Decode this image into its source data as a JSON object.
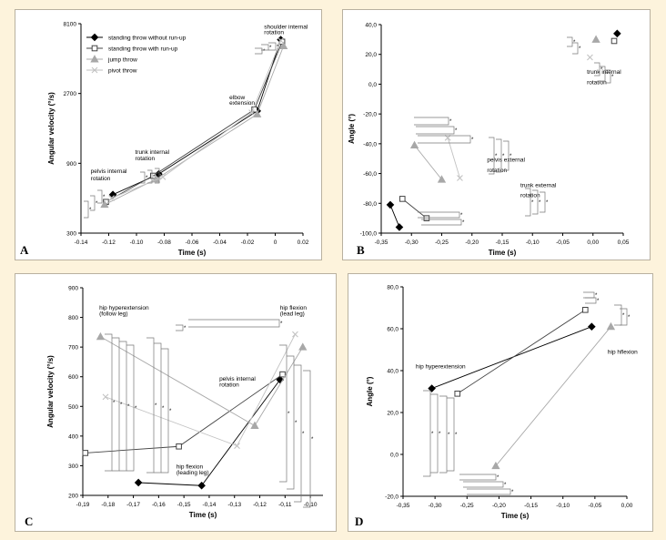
{
  "chart_data": [
    {
      "panel_letter": "A",
      "type": "line",
      "xlabel": "Time (s)",
      "ylabel": "Angular velocity (°/s)",
      "xlim": [
        -0.14,
        0.02
      ],
      "ylim": [
        300,
        8100
      ],
      "yscale": "log",
      "xticks": [
        -0.14,
        -0.12,
        -0.1,
        -0.08,
        -0.06,
        -0.04,
        -0.02,
        0,
        0.02
      ],
      "xtick_labels": [
        "-0.14",
        "-0.12",
        "-0.10",
        "-0.08",
        "-0.06",
        "-0.04",
        "-0.02",
        "0",
        "0.02"
      ],
      "yticks": [
        300,
        900,
        2700,
        8100
      ],
      "ytick_labels": [
        "300",
        "900",
        "2700",
        "8100"
      ],
      "legend_position": "top-left",
      "series": [
        {
          "name": "standing throw without run-up",
          "marker": "diamond-filled",
          "color": "#000000",
          "x": [
            -0.117,
            -0.084,
            -0.013,
            0.004
          ],
          "y": [
            550,
            760,
            2050,
            6300
          ]
        },
        {
          "name": "standing throw with run-up",
          "marker": "square-open",
          "color": "#444444",
          "x": [
            -0.122,
            -0.088,
            -0.015,
            0.005
          ],
          "y": [
            490,
            740,
            2100,
            6100
          ]
        },
        {
          "name": "jump throw",
          "marker": "triangle",
          "color": "#a8a8a8",
          "x": [
            -0.123,
            -0.086,
            -0.013,
            0.006
          ],
          "y": [
            470,
            700,
            1950,
            5700
          ]
        },
        {
          "name": "pivot throw",
          "marker": "cross",
          "color": "#c2c2c2",
          "x": [
            -0.118,
            -0.081,
            -0.017,
            0.004
          ],
          "y": [
            520,
            725,
            2000,
            6200
          ]
        }
      ],
      "annotations": [
        {
          "text": "pelvis internal",
          "x": -0.133,
          "y": 770
        },
        {
          "text": "rotation",
          "x": -0.133,
          "y": 690
        },
        {
          "text": "trunk internal",
          "x": -0.101,
          "y": 1040
        },
        {
          "text": "rotation",
          "x": -0.101,
          "y": 945
        },
        {
          "text": "elbow",
          "x": -0.033,
          "y": 2460
        },
        {
          "text": "extension",
          "x": -0.033,
          "y": 2260
        },
        {
          "text": "shoulder internal",
          "x": -0.008,
          "y": 7500
        },
        {
          "text": "rotation",
          "x": -0.008,
          "y": 6850
        }
      ]
    },
    {
      "panel_letter": "B",
      "type": "scatter",
      "xlabel": "Time (s)",
      "ylabel": "Angle (°)",
      "xlim": [
        -0.35,
        0.05
      ],
      "ylim": [
        -100,
        40
      ],
      "xticks": [
        -0.35,
        -0.3,
        -0.25,
        -0.2,
        -0.15,
        -0.1,
        -0.05,
        0.0,
        0.05
      ],
      "xtick_labels": [
        "-0,35",
        "-0,30",
        "-0,25",
        "-0,20",
        "-0,15",
        "-0,10",
        "-0,05",
        "0,00",
        "0,05"
      ],
      "yticks": [
        -100,
        -80,
        -60,
        -40,
        -20,
        0,
        20,
        40
      ],
      "ytick_labels": [
        "-100,0",
        "-80,0",
        "-60,0",
        "-40,0",
        "-20,0",
        "0,0",
        "20,0",
        "40,0"
      ],
      "series": [
        {
          "name": "",
          "marker": "diamond-filled",
          "color": "#000000",
          "x": [
            -0.335,
            -0.32,
            0.04
          ],
          "y": [
            -81,
            -96,
            34
          ]
        },
        {
          "name": "",
          "marker": "square-open",
          "color": "#444444",
          "x": [
            -0.315,
            -0.275,
            0.035
          ],
          "y": [
            -77,
            -90,
            29
          ]
        },
        {
          "name": "",
          "marker": "triangle",
          "color": "#a8a8a8",
          "x": [
            -0.295,
            -0.25,
            0.005
          ],
          "y": [
            -41,
            -64,
            30
          ]
        },
        {
          "name": "",
          "marker": "cross",
          "color": "#c2c2c2",
          "x": [
            -0.24,
            -0.22,
            -0.005
          ],
          "y": [
            -36,
            -63,
            18
          ]
        }
      ],
      "annotations": [
        {
          "text": "trunk internal",
          "x": -0.01,
          "y": 7
        },
        {
          "text": "rotation",
          "x": -0.01,
          "y": 0
        },
        {
          "text": "pelvis external",
          "x": -0.175,
          "y": -52
        },
        {
          "text": "rotation",
          "x": -0.175,
          "y": -59
        },
        {
          "text": "trunk external",
          "x": -0.12,
          "y": -69
        },
        {
          "text": "rotation",
          "x": -0.12,
          "y": -76
        }
      ]
    },
    {
      "panel_letter": "C",
      "type": "line",
      "xlabel": "Time (s)",
      "ylabel": "Angular velocity (°/s)",
      "xlim": [
        -0.19,
        -0.095
      ],
      "ylim": [
        200,
        900
      ],
      "xticks": [
        -0.19,
        -0.18,
        -0.17,
        -0.16,
        -0.15,
        -0.14,
        -0.13,
        -0.12,
        -0.11,
        -0.1
      ],
      "xtick_labels": [
        "-0,19",
        "-0,18",
        "-0,17",
        "-0,16",
        "-0,15",
        "-0,14",
        "-0,13",
        "-0,12",
        "-0,11",
        "-0,10"
      ],
      "yticks": [
        200,
        300,
        400,
        500,
        600,
        700,
        800,
        900
      ],
      "ytick_labels": [
        "200",
        "300",
        "400",
        "500",
        "600",
        "700",
        "800",
        "900"
      ],
      "series": [
        {
          "name": "",
          "marker": "diamond-filled",
          "color": "#000000",
          "x": [
            -0.168,
            -0.143,
            -0.112
          ],
          "y": [
            243,
            233,
            590
          ]
        },
        {
          "name": "",
          "marker": "square-open",
          "color": "#444444",
          "x": [
            -0.189,
            -0.152,
            -0.111
          ],
          "y": [
            343,
            365,
            608
          ]
        },
        {
          "name": "",
          "marker": "triangle",
          "color": "#a8a8a8",
          "x": [
            -0.183,
            -0.122,
            -0.103
          ],
          "y": [
            735,
            435,
            700
          ]
        },
        {
          "name": "",
          "marker": "cross",
          "color": "#c2c2c2",
          "x": [
            -0.181,
            -0.129,
            -0.106
          ],
          "y": [
            532,
            367,
            743
          ]
        }
      ],
      "annotations": [
        {
          "text": "hip hyperextension",
          "x": -0.1835,
          "y": 827
        },
        {
          "text": "(follow leg)",
          "x": -0.1835,
          "y": 807
        },
        {
          "text": "hip flexion",
          "x": -0.112,
          "y": 827
        },
        {
          "text": "(lead leg)",
          "x": -0.112,
          "y": 807
        },
        {
          "text": "pelvis internal",
          "x": -0.136,
          "y": 587
        },
        {
          "text": "rotation",
          "x": -0.136,
          "y": 567
        },
        {
          "text": "hip flexion",
          "x": -0.153,
          "y": 290
        },
        {
          "text": "(leading leg)",
          "x": -0.153,
          "y": 270
        }
      ]
    },
    {
      "panel_letter": "D",
      "type": "scatter",
      "xlabel": "Time (s)",
      "ylabel": "Angle (°)",
      "xlim": [
        -0.35,
        0.0
      ],
      "ylim": [
        -20,
        80
      ],
      "xticks": [
        -0.35,
        -0.3,
        -0.25,
        -0.2,
        -0.15,
        -0.1,
        -0.05,
        0.0
      ],
      "xtick_labels": [
        "-0,35",
        "-0,30",
        "-0,25",
        "-0,20",
        "-0,15",
        "-0,10",
        "-0,05",
        "0,00"
      ],
      "yticks": [
        -20,
        0,
        20,
        40,
        60,
        80
      ],
      "ytick_labels": [
        "-20,0",
        "0,0",
        "20,0",
        "40,0",
        "60,0",
        "80,0"
      ],
      "series": [
        {
          "name": "",
          "marker": "diamond-filled",
          "color": "#000000",
          "x": [
            -0.305,
            -0.055
          ],
          "y": [
            31.5,
            61
          ]
        },
        {
          "name": "",
          "marker": "square-open",
          "color": "#444444",
          "x": [
            -0.265,
            -0.065
          ],
          "y": [
            29,
            69
          ]
        },
        {
          "name": "",
          "marker": "triangle",
          "color": "#a8a8a8",
          "x": [
            -0.205,
            -0.025
          ],
          "y": [
            -5.5,
            61
          ]
        }
      ],
      "annotations": [
        {
          "text": "hip hyperextension",
          "x": -0.33,
          "y": 41
        },
        {
          "text": "hip hflexion",
          "x": -0.03,
          "y": 48
        }
      ]
    }
  ]
}
